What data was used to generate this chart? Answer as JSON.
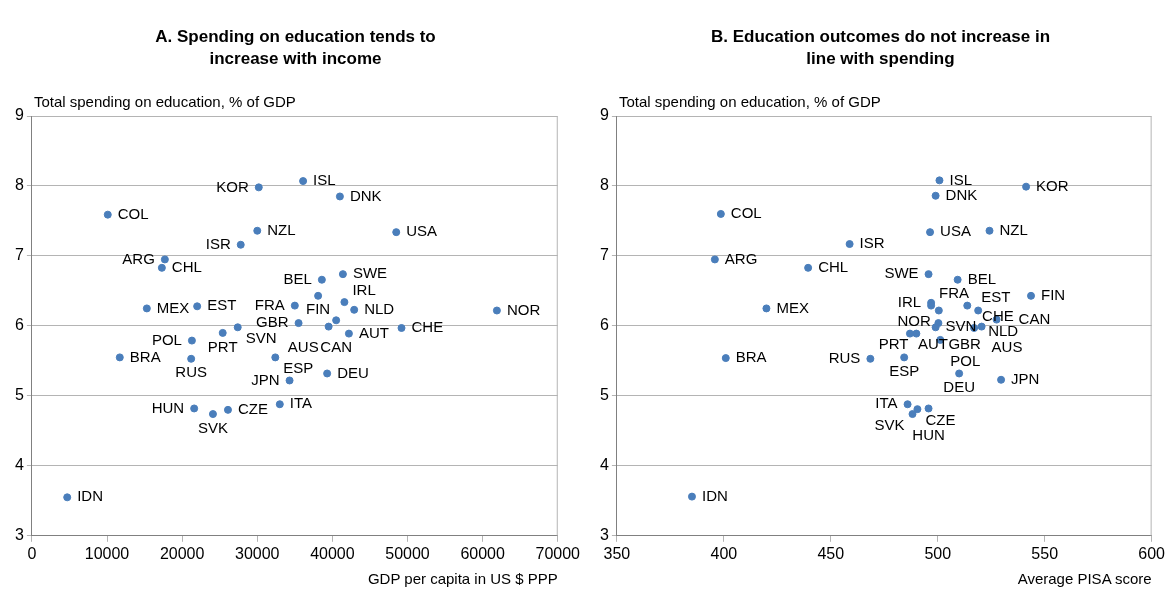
{
  "chart_data": [
    {
      "type": "scatter",
      "title": "A. Spending on education tends to increase with income",
      "xlabel": "GDP per capita in US $ PPP",
      "ylabel": "Total spending on education, % of GDP",
      "xlim": [
        0,
        70000
      ],
      "xticks": [
        0,
        10000,
        20000,
        30000,
        40000,
        50000,
        60000,
        70000
      ],
      "ylim": [
        3,
        9
      ],
      "yticks": [
        3,
        4,
        5,
        6,
        7,
        8,
        9
      ],
      "grid": "y",
      "legend": false,
      "marker": "circle",
      "series": [
        {
          "color": "#4a7ebb",
          "x": [
            10100,
            30200,
            36100,
            41000,
            30000,
            48500,
            27800,
            17700,
            17300,
            38600,
            41400,
            38100,
            35000,
            41600,
            42900,
            15300,
            22000,
            61900,
            35500,
            40500,
            39500,
            42200,
            49200,
            27400,
            25400,
            21300,
            11700,
            21200,
            32400,
            39300,
            34300,
            33000,
            21600,
            24100,
            26100,
            4700
          ],
          "values": [
            7.59,
            7.98,
            8.07,
            7.85,
            7.36,
            7.34,
            7.16,
            6.95,
            6.83,
            6.66,
            6.74,
            6.43,
            6.29,
            6.34,
            6.23,
            6.25,
            6.28,
            6.22,
            6.04,
            6.08,
            5.99,
            5.89,
            5.97,
            5.98,
            5.9,
            5.79,
            5.55,
            5.53,
            5.55,
            5.32,
            5.22,
            4.88,
            4.82,
            4.74,
            4.8,
            3.55
          ]
        }
      ],
      "annotations": [
        {
          "text": "COL",
          "x": 10100,
          "y": 7.59
        },
        {
          "text": "KOR",
          "x": 30200,
          "y": 7.98
        },
        {
          "text": "ISL",
          "x": 36100,
          "y": 8.07
        },
        {
          "text": "DNK",
          "x": 41000,
          "y": 7.85
        },
        {
          "text": "NZL",
          "x": 30000,
          "y": 7.36
        },
        {
          "text": "USA",
          "x": 48500,
          "y": 7.34
        },
        {
          "text": "ISR",
          "x": 27800,
          "y": 7.16
        },
        {
          "text": "ARG",
          "x": 17700,
          "y": 6.95
        },
        {
          "text": "CHL",
          "x": 17300,
          "y": 6.83
        },
        {
          "text": "BEL",
          "x": 38600,
          "y": 6.66
        },
        {
          "text": "SWE",
          "x": 41400,
          "y": 6.74
        },
        {
          "text": "FIN",
          "x": 38100,
          "y": 6.43
        },
        {
          "text": "FRA",
          "x": 35000,
          "y": 6.29
        },
        {
          "text": "IRL",
          "x": 41600,
          "y": 6.34
        },
        {
          "text": "NLD",
          "x": 42900,
          "y": 6.23
        },
        {
          "text": "MEX",
          "x": 15300,
          "y": 6.25
        },
        {
          "text": "EST",
          "x": 22000,
          "y": 6.28
        },
        {
          "text": "NOR",
          "x": 61900,
          "y": 6.22
        },
        {
          "text": "GBR",
          "x": 35500,
          "y": 6.04
        },
        {
          "text": "CAN",
          "x": 40500,
          "y": 6.08
        },
        {
          "text": "AUS",
          "x": 39500,
          "y": 5.99
        },
        {
          "text": "AUT",
          "x": 42200,
          "y": 5.89
        },
        {
          "text": "CHE",
          "x": 49200,
          "y": 5.97
        },
        {
          "text": "SVN",
          "x": 27400,
          "y": 5.98
        },
        {
          "text": "PRT",
          "x": 25400,
          "y": 5.9
        },
        {
          "text": "POL",
          "x": 21300,
          "y": 5.79
        },
        {
          "text": "BRA",
          "x": 11700,
          "y": 5.55
        },
        {
          "text": "RUS",
          "x": 21200,
          "y": 5.53
        },
        {
          "text": "ESP",
          "x": 32400,
          "y": 5.55
        },
        {
          "text": "DEU",
          "x": 39300,
          "y": 5.32
        },
        {
          "text": "JPN",
          "x": 34300,
          "y": 5.22
        },
        {
          "text": "ITA",
          "x": 33000,
          "y": 4.88
        },
        {
          "text": "HUN",
          "x": 21600,
          "y": 4.82
        },
        {
          "text": "SVK",
          "x": 24100,
          "y": 4.74
        },
        {
          "text": "CZE",
          "x": 26100,
          "y": 4.8
        },
        {
          "text": "IDN",
          "x": 4700,
          "y": 3.55
        }
      ]
    },
    {
      "type": "scatter",
      "title": "B. Education outcomes do not increase in line with spending",
      "xlabel": "Average PISA score",
      "ylabel": "Total spending on education, % of GDP",
      "xlim": [
        350,
        600
      ],
      "xticks": [
        350,
        400,
        450,
        500,
        550,
        600
      ],
      "ylim": [
        3,
        9
      ],
      "yticks": [
        3,
        4,
        5,
        6,
        7,
        8,
        9
      ],
      "grid": "y",
      "legend": false,
      "marker": "circle",
      "series": [
        {
          "color": "#4a7ebb",
          "x": [
            398.6,
            395.8,
            458.8,
            439.4,
            419.9,
            500.8,
            541.3,
            499,
            496.4,
            524.2,
            495.7,
            509.3,
            543.6,
            496.9,
            496.9,
            500.5,
            513.8,
            518.9,
            500.3,
            490,
            487,
            499,
            520.5,
            517,
            527.5,
            501.2,
            468.5,
            484.3,
            510,
            529.6,
            485.9,
            490.5,
            488.2,
            495.7,
            400.9,
            385.1
          ],
          "values": [
            7.6,
            6.95,
            7.17,
            6.83,
            6.25,
            8.08,
            7.99,
            7.86,
            7.34,
            7.36,
            6.74,
            6.66,
            6.43,
            6.33,
            6.29,
            6.22,
            6.29,
            6.22,
            6.04,
            5.89,
            5.89,
            5.98,
            5.99,
            5.97,
            6.09,
            5.8,
            5.53,
            5.55,
            5.32,
            5.23,
            4.88,
            4.81,
            4.74,
            4.82,
            5.54,
            3.56
          ]
        }
      ],
      "annotations": [
        {
          "text": "COL",
          "x": 398.6,
          "y": 7.6
        },
        {
          "text": "ARG",
          "x": 395.8,
          "y": 6.95
        },
        {
          "text": "ISR",
          "x": 458.8,
          "y": 7.17
        },
        {
          "text": "CHL",
          "x": 439.4,
          "y": 6.83
        },
        {
          "text": "MEX",
          "x": 419.9,
          "y": 6.25
        },
        {
          "text": "ISL",
          "x": 500.8,
          "y": 8.08
        },
        {
          "text": "KOR",
          "x": 541.3,
          "y": 7.99
        },
        {
          "text": "DNK",
          "x": 499,
          "y": 7.86
        },
        {
          "text": "USA",
          "x": 496.4,
          "y": 7.34
        },
        {
          "text": "NZL",
          "x": 524.2,
          "y": 7.36
        },
        {
          "text": "SWE",
          "x": 495.7,
          "y": 6.74
        },
        {
          "text": "BEL",
          "x": 509.3,
          "y": 6.66
        },
        {
          "text": "FIN",
          "x": 543.6,
          "y": 6.43
        },
        {
          "text": "IRL",
          "x": 496.9,
          "y": 6.33
        },
        {
          "text": "FRA",
          "x": 496.9,
          "y": 6.29
        },
        {
          "text": "NOR",
          "x": 500.5,
          "y": 6.22
        },
        {
          "text": "EST",
          "x": 513.8,
          "y": 6.29
        },
        {
          "text": "NLD",
          "x": 518.9,
          "y": 6.22
        },
        {
          "text": "GBR",
          "x": 500.3,
          "y": 6.04
        },
        {
          "text": "PRT",
          "x": 490,
          "y": 5.89
        },
        {
          "text": "AUT",
          "x": 487,
          "y": 5.89
        },
        {
          "text": "SVN",
          "x": 499,
          "y": 5.98
        },
        {
          "text": "AUS",
          "x": 520.5,
          "y": 5.99
        },
        {
          "text": "CHE",
          "x": 517,
          "y": 5.97
        },
        {
          "text": "CAN",
          "x": 527.5,
          "y": 6.09
        },
        {
          "text": "POL",
          "x": 501.2,
          "y": 5.8
        },
        {
          "text": "RUS",
          "x": 468.5,
          "y": 5.53
        },
        {
          "text": "ESP",
          "x": 484.3,
          "y": 5.55
        },
        {
          "text": "DEU",
          "x": 510,
          "y": 5.32
        },
        {
          "text": "JPN",
          "x": 529.6,
          "y": 5.23
        },
        {
          "text": "ITA",
          "x": 485.9,
          "y": 4.88
        },
        {
          "text": "CZE",
          "x": 490.5,
          "y": 4.81
        },
        {
          "text": "SVK",
          "x": 488.2,
          "y": 4.74
        },
        {
          "text": "HUN",
          "x": 495.7,
          "y": 4.82
        },
        {
          "text": "BRA",
          "x": 400.9,
          "y": 5.54
        },
        {
          "text": "IDN",
          "x": 385.1,
          "y": 3.56
        }
      ]
    }
  ]
}
